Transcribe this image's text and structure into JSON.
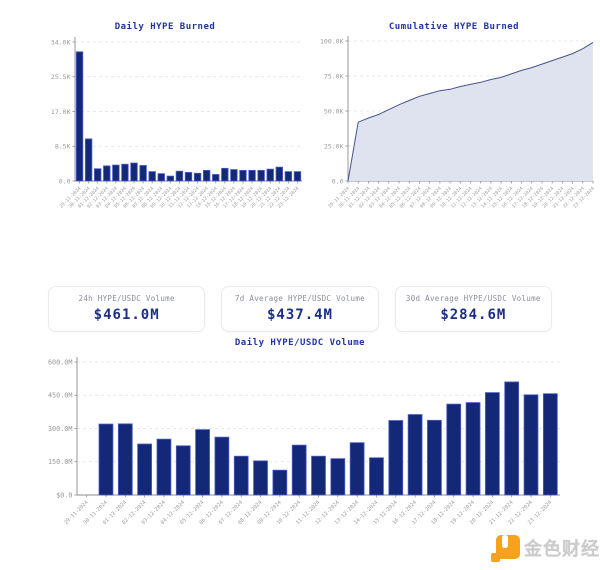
{
  "colors": {
    "accent_navy": "#2234a0",
    "bar_fill": "#142878",
    "bar_edge": "#4a5cc4",
    "area_fill": "#dfe3f0",
    "area_line": "#46558c",
    "grid": "#e0e0e0",
    "axis": "#8c8c8c",
    "label_gray": "#9a9a9a",
    "card_value_navy": "#1b2f86",
    "watermark_orange": "#f6a21d",
    "watermark_gray": "#cbcbcb"
  },
  "chart_data": [
    {
      "type": "bar",
      "title": "Daily HYPE Burned",
      "categories": [
        "29-11-2024",
        "30-11-2024",
        "01-12-2024",
        "02-12-2024",
        "03-12-2024",
        "04-12-2024",
        "05-12-2024",
        "06-12-2024",
        "07-12-2024",
        "08-12-2024",
        "09-12-2024",
        "10-12-2024",
        "11-12-2024",
        "12-12-2024",
        "13-12-2024",
        "14-12-2024",
        "15-12-2024",
        "16-12-2024",
        "17-12-2024",
        "18-12-2024",
        "19-12-2024",
        "20-12-2024",
        "21-12-2024",
        "22-12-2024",
        "23-12-2024"
      ],
      "values": [
        31600,
        10300,
        3000,
        3700,
        3900,
        4100,
        4400,
        3800,
        2300,
        1800,
        1200,
        2400,
        2100,
        1900,
        2600,
        1600,
        3100,
        2800,
        2600,
        2600,
        2600,
        2900,
        3400,
        2300,
        2300
      ],
      "ylim": [
        0,
        34000
      ],
      "yticks": [
        {
          "v": 0,
          "label": "0.0"
        },
        {
          "v": 8500,
          "label": "8.5K"
        },
        {
          "v": 17000,
          "label": "17.0K"
        },
        {
          "v": 25500,
          "label": "25.5K"
        },
        {
          "v": 34000,
          "label": "34.0K"
        }
      ],
      "grid": "dashed",
      "legend": "none"
    },
    {
      "type": "area",
      "title": "Cumulative HYPE Burned",
      "categories": [
        "29-11-2024",
        "30-11-2024",
        "01-12-2024",
        "02-12-2024",
        "03-12-2024",
        "04-12-2024",
        "05-12-2024",
        "06-12-2024",
        "07-12-2024",
        "08-12-2024",
        "09-12-2024",
        "10-12-2024",
        "11-12-2024",
        "12-12-2024",
        "13-12-2024",
        "14-12-2024",
        "15-12-2024",
        "16-12-2024",
        "17-12-2024",
        "18-12-2024",
        "19-12-2024",
        "20-12-2024",
        "21-12-2024",
        "22-12-2024",
        "23-12-2024"
      ],
      "values": [
        0,
        42000,
        45000,
        47500,
        51000,
        54500,
        57500,
        60500,
        62500,
        64500,
        65500,
        67500,
        69000,
        70500,
        72500,
        74000,
        76500,
        79000,
        81000,
        83500,
        86000,
        88500,
        91000,
        94500,
        99000
      ],
      "ylim": [
        0,
        100000
      ],
      "yticks": [
        {
          "v": 0,
          "label": "0.0"
        },
        {
          "v": 25000,
          "label": "25.0K"
        },
        {
          "v": 50000,
          "label": "50.0K"
        },
        {
          "v": 75000,
          "label": "75.0K"
        },
        {
          "v": 100000,
          "label": "100.0K"
        }
      ],
      "grid": "dashed",
      "legend": "none"
    },
    {
      "type": "bar",
      "title": "Daily HYPE/USDC Volume",
      "categories": [
        "29-11-2024",
        "30-11-2024",
        "01-12-2024",
        "02-12-2024",
        "03-12-2024",
        "04-12-2024",
        "05-12-2024",
        "06-12-2024",
        "07-12-2024",
        "08-12-2024",
        "09-12-2024",
        "10-12-2024",
        "11-12-2024",
        "12-12-2024",
        "13-12-2024",
        "14-12-2024",
        "15-12-2024",
        "16-12-2024",
        "17-12-2024",
        "18-12-2024",
        "19-12-2024",
        "20-12-2024",
        "21-12-2024",
        "22-12-2024",
        "23-12-2024"
      ],
      "values": [
        0,
        320,
        321,
        230,
        252,
        222,
        295,
        261,
        175,
        154,
        112,
        225,
        175,
        164,
        236,
        168,
        336,
        363,
        337,
        410,
        417,
        462,
        510,
        452,
        457
      ],
      "unit": "M USD",
      "ylim": [
        0,
        600
      ],
      "yticks": [
        {
          "v": 0,
          "label": "$0.0"
        },
        {
          "v": 150,
          "label": "150.0M"
        },
        {
          "v": 300,
          "label": "300.0M"
        },
        {
          "v": 450,
          "label": "450.0M"
        },
        {
          "v": 600,
          "label": "600.0M"
        }
      ],
      "grid": "dashed",
      "legend": "none"
    }
  ],
  "cards": [
    {
      "label": "24h HYPE/USDC Volume",
      "value": "$461.0M"
    },
    {
      "label": "7d Average HYPE/USDC Volume",
      "value": "$437.4M"
    },
    {
      "label": "30d Average HYPE/USDC Volume",
      "value": "$284.6M"
    }
  ],
  "watermark": {
    "logo_icon": "jinse-finance-logo",
    "text": "金色财经"
  }
}
